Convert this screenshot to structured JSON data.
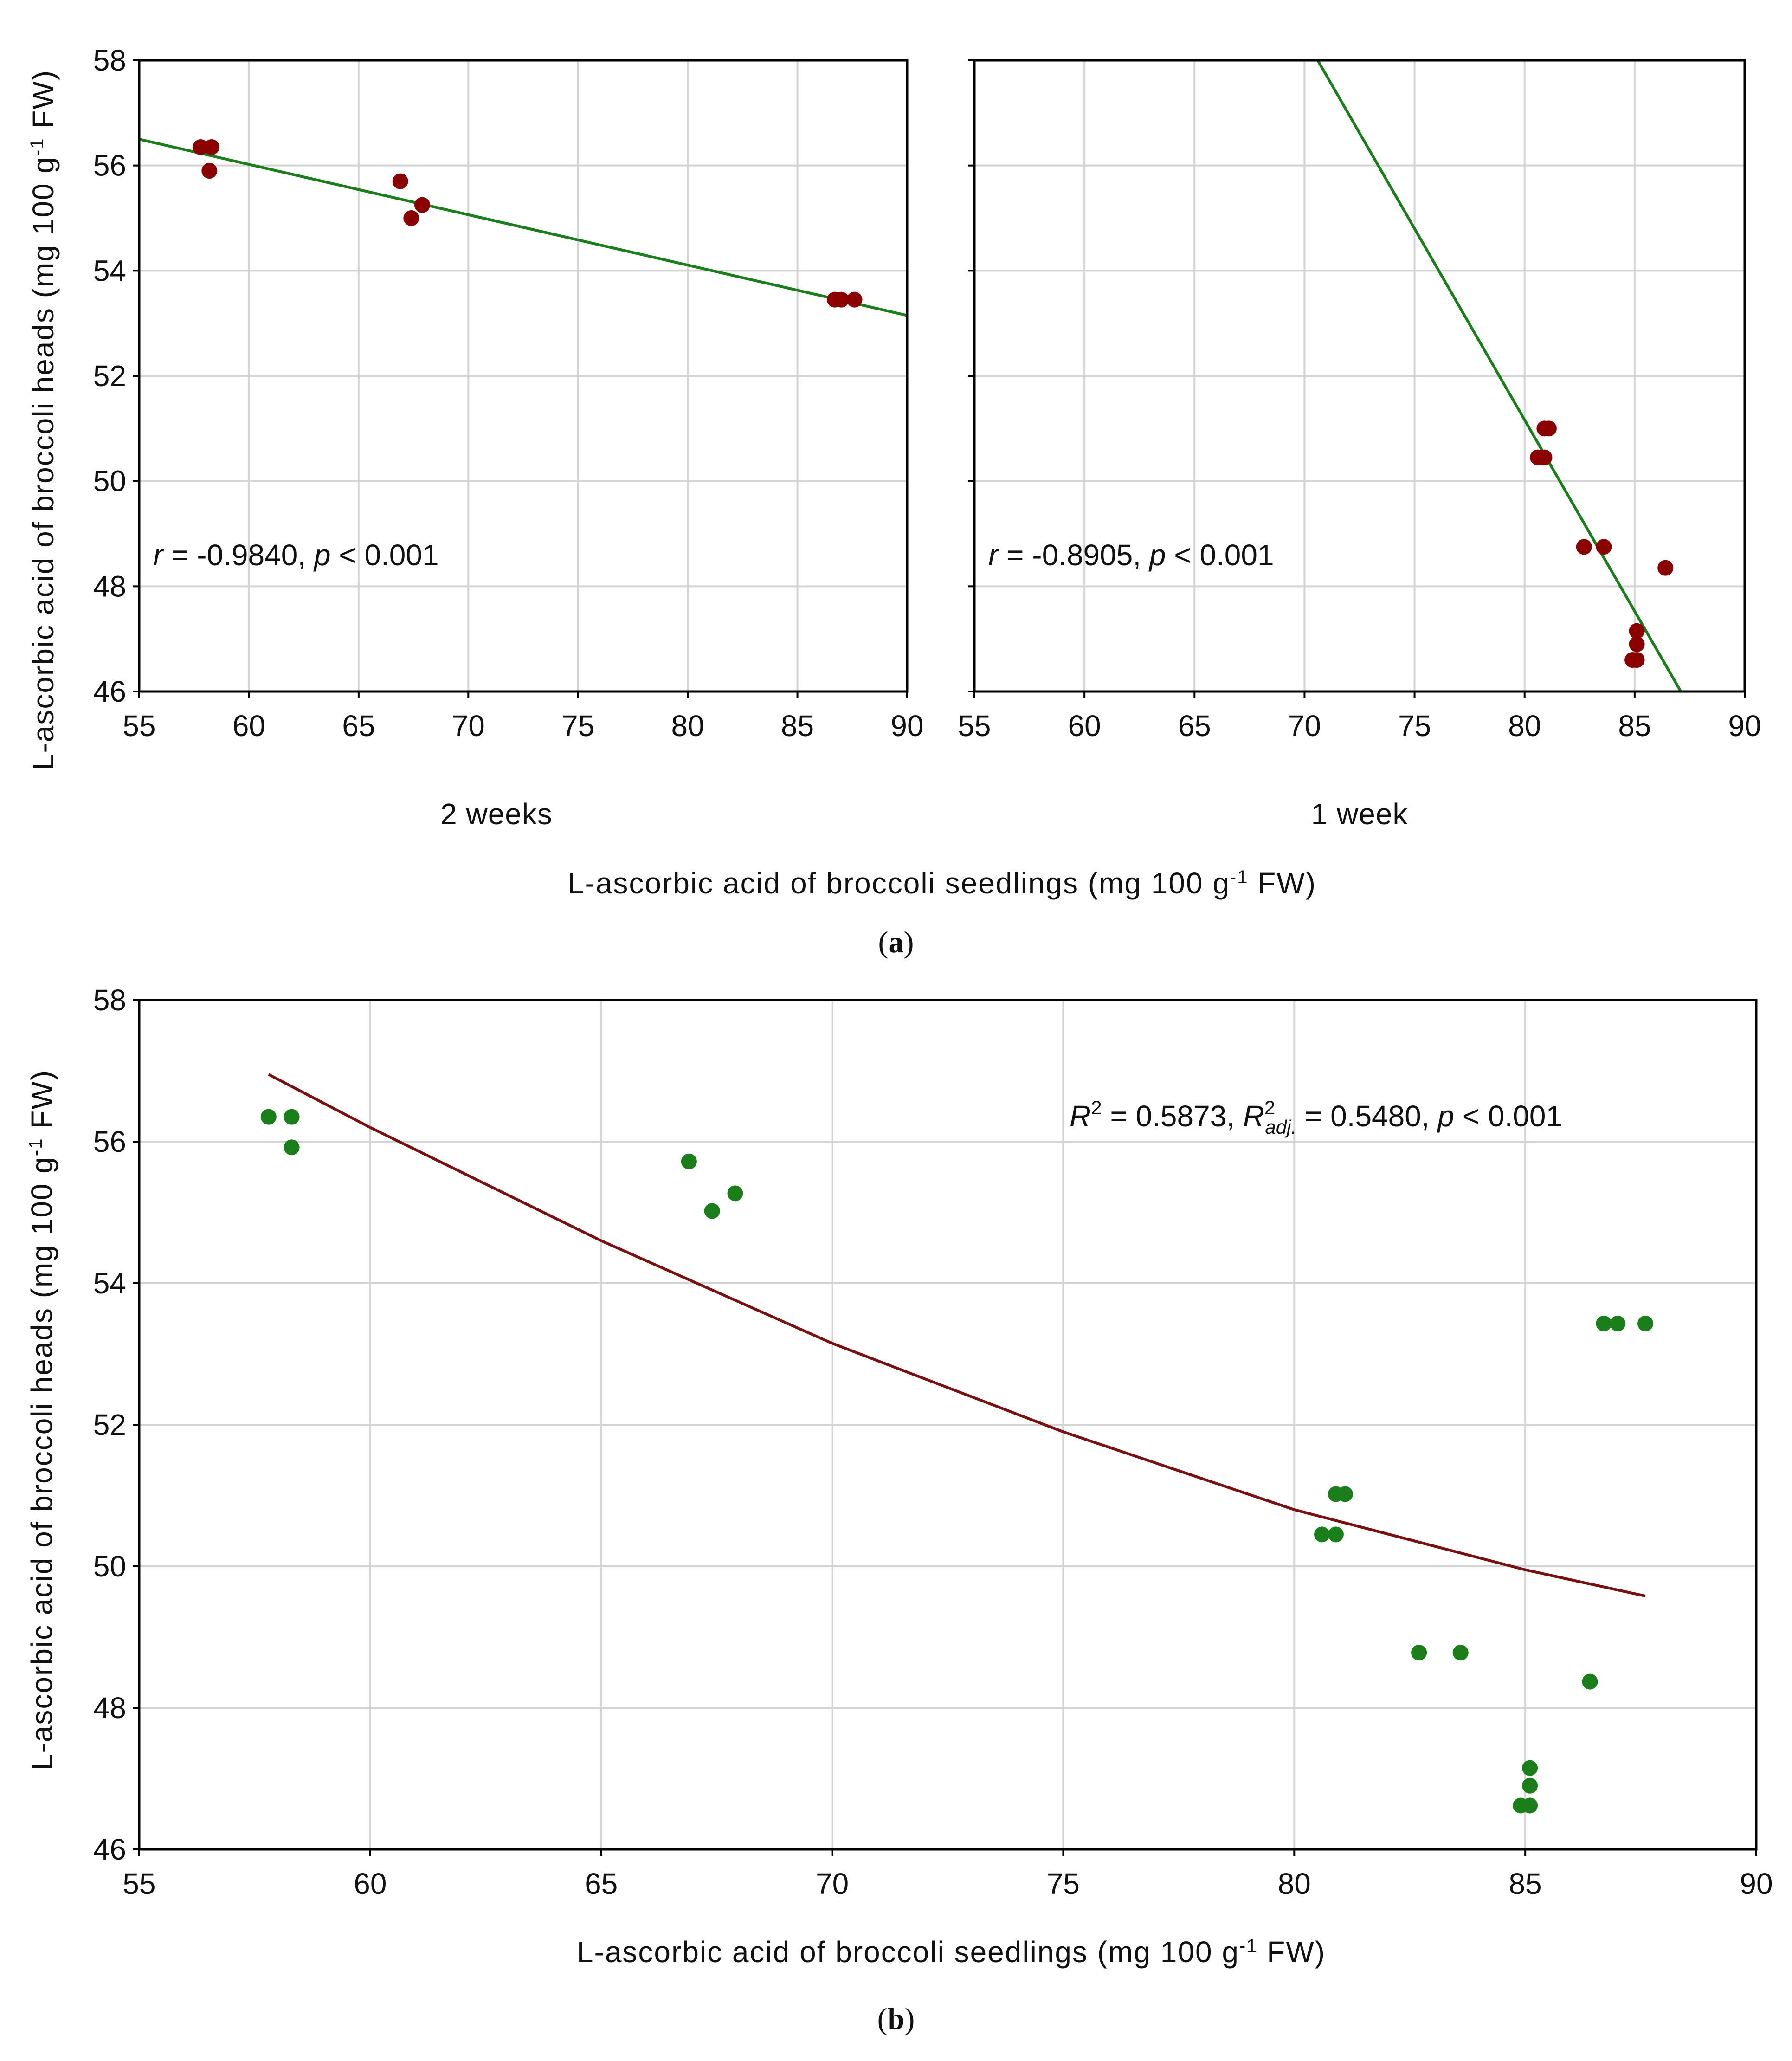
{
  "figure": {
    "caption_a": "(a)",
    "caption_a_letter": "a",
    "caption_b": "(b)",
    "caption_b_letter": "b"
  },
  "chart_data": [
    {
      "id": "a-left",
      "type": "scatter",
      "panel": "a",
      "facet_label": "2 weeks",
      "xlabel": "L-ascorbic acid of broccoli seedlings (mg 100 g-1 FW)",
      "ylabel": "L-ascorbic acid of broccoli heads (mg 100 g-1 FW)",
      "xlim": [
        55,
        90
      ],
      "ylim": [
        46,
        58
      ],
      "xticks": [
        55,
        60,
        65,
        70,
        75,
        80,
        85,
        90
      ],
      "yticks": [
        46,
        48,
        50,
        52,
        54,
        56,
        58
      ],
      "grid": true,
      "point_color": "#8b0000",
      "line_color": "#1a7f1a",
      "points": [
        {
          "x": 57.8,
          "y": 56.35
        },
        {
          "x": 58.3,
          "y": 56.35
        },
        {
          "x": 58.2,
          "y": 55.9
        },
        {
          "x": 66.9,
          "y": 55.7
        },
        {
          "x": 67.4,
          "y": 55.0
        },
        {
          "x": 67.9,
          "y": 55.25
        },
        {
          "x": 86.7,
          "y": 53.45
        },
        {
          "x": 87.0,
          "y": 53.45
        },
        {
          "x": 87.6,
          "y": 53.45
        }
      ],
      "fit_line": {
        "x": [
          55,
          90
        ],
        "y": [
          56.5,
          53.15
        ]
      },
      "annotation": {
        "r_symbol": "r",
        "r_text": " = -0.9840, ",
        "p_symbol": "p",
        "p_text": " < 0.001"
      }
    },
    {
      "id": "a-right",
      "type": "scatter",
      "panel": "a",
      "facet_label": "1 week",
      "xlim": [
        55,
        90
      ],
      "ylim": [
        46,
        58
      ],
      "xticks": [
        55,
        60,
        65,
        70,
        75,
        80,
        85,
        90
      ],
      "yticks": [
        46,
        48,
        50,
        52,
        54,
        56,
        58
      ],
      "grid": true,
      "point_color": "#8b0000",
      "line_color": "#1a7f1a",
      "points": [
        {
          "x": 80.6,
          "y": 50.45
        },
        {
          "x": 80.9,
          "y": 50.45
        },
        {
          "x": 80.9,
          "y": 51.0
        },
        {
          "x": 81.1,
          "y": 51.0
        },
        {
          "x": 82.7,
          "y": 48.75
        },
        {
          "x": 83.6,
          "y": 48.75
        },
        {
          "x": 86.4,
          "y": 48.35
        },
        {
          "x": 84.9,
          "y": 46.6
        },
        {
          "x": 85.1,
          "y": 46.6
        },
        {
          "x": 85.1,
          "y": 46.9
        },
        {
          "x": 85.1,
          "y": 47.15
        }
      ],
      "fit_line": {
        "x": [
          70.6,
          87.1
        ],
        "y": [
          58,
          46
        ]
      },
      "annotation": {
        "r_symbol": "r",
        "r_text": " = -0.8905, ",
        "p_symbol": "p",
        "p_text": " < 0.001"
      }
    },
    {
      "id": "b",
      "type": "scatter",
      "panel": "b",
      "xlabel": "L-ascorbic acid of broccoli seedlings (mg 100 g-1 FW)",
      "ylabel": "L-ascorbic acid of broccoli heads (mg 100 g-1 FW)",
      "xlim": [
        55,
        90
      ],
      "ylim": [
        46,
        58
      ],
      "xticks": [
        55,
        60,
        65,
        70,
        75,
        80,
        85,
        90
      ],
      "yticks": [
        46,
        48,
        50,
        52,
        54,
        56,
        58
      ],
      "grid": true,
      "point_color": "#1a7f1a",
      "line_color": "#7a1010",
      "points": [
        {
          "x": 57.8,
          "y": 56.35
        },
        {
          "x": 58.3,
          "y": 56.35
        },
        {
          "x": 58.3,
          "y": 55.92
        },
        {
          "x": 66.9,
          "y": 55.72
        },
        {
          "x": 67.4,
          "y": 55.02
        },
        {
          "x": 67.9,
          "y": 55.27
        },
        {
          "x": 80.6,
          "y": 50.45
        },
        {
          "x": 80.9,
          "y": 50.45
        },
        {
          "x": 80.9,
          "y": 51.02
        },
        {
          "x": 81.1,
          "y": 51.02
        },
        {
          "x": 82.7,
          "y": 48.78
        },
        {
          "x": 83.6,
          "y": 48.78
        },
        {
          "x": 86.4,
          "y": 48.37
        },
        {
          "x": 84.9,
          "y": 46.62
        },
        {
          "x": 85.1,
          "y": 46.62
        },
        {
          "x": 85.1,
          "y": 46.9
        },
        {
          "x": 85.1,
          "y": 47.15
        },
        {
          "x": 86.7,
          "y": 53.43
        },
        {
          "x": 87.0,
          "y": 53.43
        },
        {
          "x": 87.6,
          "y": 53.43
        }
      ],
      "fit_curve": {
        "x": [
          57.8,
          60,
          65,
          70,
          75,
          80,
          85,
          87.6
        ],
        "y": [
          56.95,
          56.2,
          54.6,
          53.15,
          51.9,
          50.8,
          49.95,
          49.58
        ]
      },
      "annotation": {
        "R_symbol": "R",
        "sup_2": "2",
        "r2_text": " = 0.5873, ",
        "R_adj_symbol": "R",
        "sup_2b": "2",
        "adj_sub": "adj.",
        "r2adj_text": " = 0.5480, ",
        "p_symbol": "p",
        "p_text": " < 0.001"
      }
    }
  ],
  "axis_text": {
    "ylabel_main": "L-ascorbic acid of broccoli heads (mg 100 g",
    "ylabel_sup": "-1",
    "ylabel_tail": " FW)",
    "xlabel_main": "L-ascorbic acid of broccoli seedlings (mg 100 g",
    "xlabel_sup": "-1",
    "xlabel_tail": " FW)"
  }
}
